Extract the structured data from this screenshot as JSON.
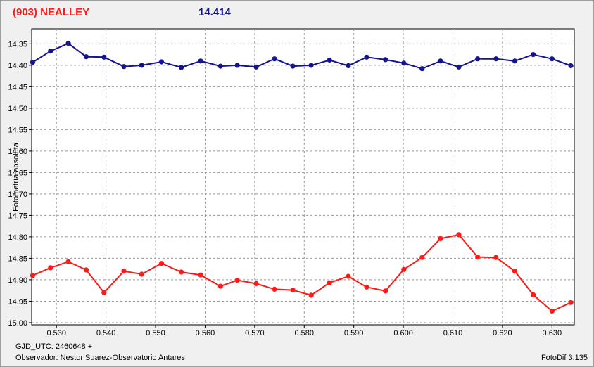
{
  "header": {
    "object": "(903) NEALLEY",
    "magnitude": "14.414"
  },
  "footer": {
    "gjd": "GJD_UTC: 2460648 +",
    "observer": "Observador: Nestor Suarez-Observatorio Antares",
    "software": "FotoDif 3.135"
  },
  "colors": {
    "series_top": "#14148c",
    "series_bottom": "#ff1a1a",
    "grid": "#999999"
  },
  "chart_data": {
    "type": "line",
    "title": "(903) NEALLEY",
    "xlabel": "",
    "ylabel": "Fotometría absoluta",
    "xlim": [
      0.525,
      0.6345
    ],
    "ylim": [
      14.315,
      15.005
    ],
    "y_inverted": true,
    "grid": true,
    "x_ticks": [
      0.53,
      0.54,
      0.55,
      0.56,
      0.57,
      0.58,
      0.59,
      0.6,
      0.61,
      0.62,
      0.63
    ],
    "x_tick_labels": [
      "0.530",
      "0.540",
      "0.550",
      "0.560",
      "0.570",
      "0.580",
      "0.590",
      "0.600",
      "0.610",
      "0.620",
      "0.630"
    ],
    "y_ticks": [
      14.35,
      14.4,
      14.45,
      14.5,
      14.55,
      14.6,
      14.65,
      14.7,
      14.75,
      14.8,
      14.85,
      14.9,
      14.95,
      15.0
    ],
    "y_tick_labels": [
      "14.35",
      "14.40",
      "14.45",
      "14.50",
      "14.55",
      "14.60",
      "14.65",
      "14.70",
      "14.75",
      "14.80",
      "14.85",
      "14.90",
      "14.95",
      "15.00"
    ],
    "series": [
      {
        "key": "top",
        "x": [
          0.5252,
          0.5288,
          0.5324,
          0.536,
          0.5396,
          0.5436,
          0.5472,
          0.5512,
          0.5552,
          0.5591,
          0.5631,
          0.5665,
          0.5703,
          0.574,
          0.5777,
          0.5814,
          0.5851,
          0.5889,
          0.5926,
          0.5964,
          0.6001,
          0.6038,
          0.6075,
          0.6112,
          0.615,
          0.6187,
          0.6225,
          0.6262,
          0.63,
          0.6338
        ],
        "y": [
          14.393,
          14.367,
          14.349,
          14.38,
          14.381,
          14.403,
          14.4,
          14.392,
          14.405,
          14.39,
          14.402,
          14.4,
          14.404,
          14.385,
          14.402,
          14.4,
          14.388,
          14.401,
          14.381,
          14.387,
          14.395,
          14.408,
          14.39,
          14.404,
          14.385,
          14.385,
          14.39,
          14.375,
          14.385,
          14.401
        ]
      },
      {
        "key": "bottom",
        "x": [
          0.5252,
          0.5288,
          0.5324,
          0.536,
          0.5396,
          0.5436,
          0.5472,
          0.5512,
          0.5552,
          0.5591,
          0.5631,
          0.5665,
          0.5703,
          0.574,
          0.5777,
          0.5814,
          0.5851,
          0.5889,
          0.5926,
          0.5964,
          0.6001,
          0.6038,
          0.6075,
          0.6112,
          0.615,
          0.6187,
          0.6225,
          0.6262,
          0.63,
          0.6338
        ],
        "y": [
          14.89,
          14.872,
          14.858,
          14.877,
          14.93,
          14.88,
          14.887,
          14.862,
          14.882,
          14.889,
          14.915,
          14.901,
          14.909,
          14.922,
          14.924,
          14.936,
          14.907,
          14.892,
          14.917,
          14.926,
          14.876,
          14.848,
          14.804,
          14.795,
          14.847,
          14.848,
          14.88,
          14.935,
          14.973,
          14.953
        ]
      }
    ]
  }
}
